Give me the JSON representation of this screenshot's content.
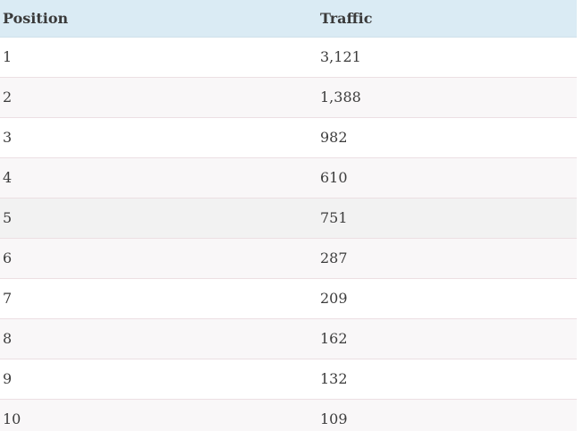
{
  "table": {
    "headers": [
      "Position",
      "Traffic"
    ],
    "rows": [
      {
        "position": "1",
        "traffic": "3,121"
      },
      {
        "position": "2",
        "traffic": "1,388"
      },
      {
        "position": "3",
        "traffic": "982"
      },
      {
        "position": "4",
        "traffic": "610"
      },
      {
        "position": "5",
        "traffic": "751"
      },
      {
        "position": "6",
        "traffic": "287"
      },
      {
        "position": "7",
        "traffic": "209"
      },
      {
        "position": "8",
        "traffic": "162"
      },
      {
        "position": "9",
        "traffic": "132"
      },
      {
        "position": "10",
        "traffic": "109"
      }
    ]
  },
  "colors": {
    "header_background": "#daebf4",
    "row_alt_background": "#f9f7f8",
    "row_divider": "#ecdfe3"
  }
}
